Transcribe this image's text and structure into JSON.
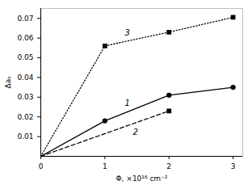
{
  "chart_data": {
    "type": "line",
    "xlabel": "Φ, ×10¹⁶ cm⁻²",
    "ylabel": "Δaₛ",
    "xlim": [
      0,
      3.15
    ],
    "ylim": [
      0,
      0.075
    ],
    "xticks": [
      0,
      1,
      2,
      3
    ],
    "yticks": [
      0.01,
      0.02,
      0.03,
      0.04,
      0.05,
      0.06,
      0.07
    ],
    "grid": false,
    "series": [
      {
        "name": "1",
        "color": "#000000",
        "marker": "circle",
        "line_style": "solid",
        "x": [
          0,
          1,
          2,
          3
        ],
        "values": [
          0,
          0.018,
          0.031,
          0.035
        ]
      },
      {
        "name": "2",
        "color": "#000000",
        "marker": "square",
        "line_style": "dashed",
        "x": [
          0,
          2
        ],
        "values": [
          0,
          0.023
        ]
      },
      {
        "name": "3",
        "color": "#000000",
        "marker": "square",
        "line_style": "dotted",
        "x": [
          0,
          1,
          2,
          3
        ],
        "values": [
          0,
          0.056,
          0.063,
          0.0705
        ]
      }
    ]
  }
}
